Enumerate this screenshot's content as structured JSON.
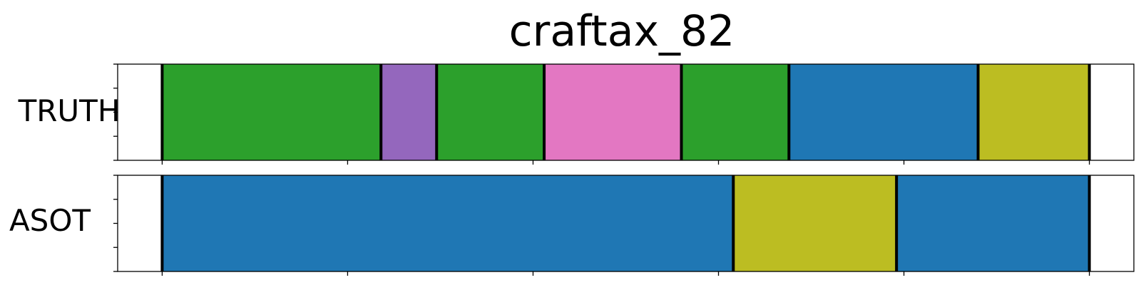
{
  "chart_data": {
    "type": "segmentation-timeline",
    "title": "craftax_82",
    "xlim": [
      -12,
      262
    ],
    "x_ticks": [
      0,
      50,
      100,
      150,
      200,
      250
    ],
    "y_tick_count": 5,
    "boundary_color": "#000000",
    "rows": [
      {
        "label": "TRUTH",
        "segments": [
          {
            "start": 0,
            "end": 59,
            "color": "#2ca02c"
          },
          {
            "start": 59,
            "end": 74,
            "color": "#9467bd"
          },
          {
            "start": 74,
            "end": 103,
            "color": "#2ca02c"
          },
          {
            "start": 103,
            "end": 140,
            "color": "#e377c2"
          },
          {
            "start": 140,
            "end": 169,
            "color": "#2ca02c"
          },
          {
            "start": 169,
            "end": 220,
            "color": "#1f77b4"
          },
          {
            "start": 220,
            "end": 250,
            "color": "#bcbd22"
          }
        ]
      },
      {
        "label": "ASOT",
        "segments": [
          {
            "start": 0,
            "end": 154,
            "color": "#1f77b4"
          },
          {
            "start": 154,
            "end": 198,
            "color": "#bcbd22"
          },
          {
            "start": 198,
            "end": 250,
            "color": "#1f77b4"
          }
        ]
      }
    ]
  }
}
